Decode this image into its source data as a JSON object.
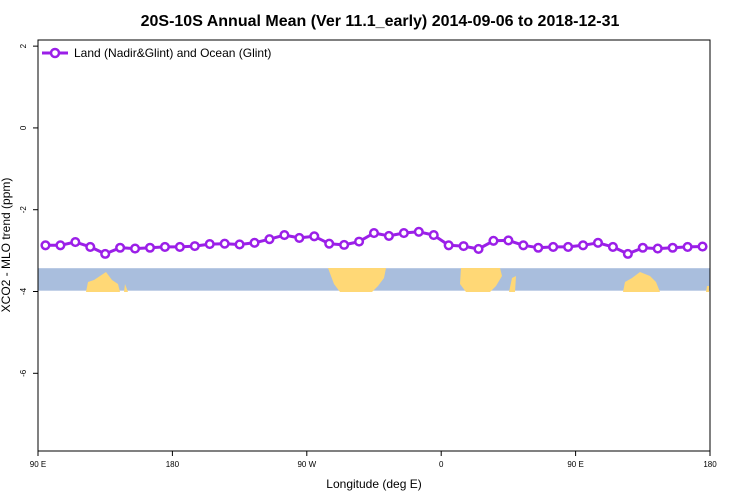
{
  "chart_data": {
    "type": "line",
    "title": "20S-10S Annual Mean (Ver 11.1_early)   2014-09-06 to 2018-12-31",
    "xlabel": "Longitude (deg E)",
    "ylabel": "XCO2 - MLO trend (ppm)",
    "x_ticks": [
      {
        "value": 90,
        "label": "90 E"
      },
      {
        "value": 180,
        "label": "180"
      },
      {
        "value": 270,
        "label": "90 W"
      },
      {
        "value": 360,
        "label": "0"
      },
      {
        "value": 450,
        "label": "90 E"
      },
      {
        "value": 540,
        "label": "180"
      }
    ],
    "y_ticks": [
      {
        "value": 2,
        "label": "2"
      },
      {
        "value": 0,
        "label": "0"
      },
      {
        "value": -2,
        "label": "-2"
      },
      {
        "value": -4,
        "label": "-4"
      },
      {
        "value": -6,
        "label": "-6"
      }
    ],
    "xlim": [
      90,
      540
    ],
    "ylim": [
      -7.9,
      2.15
    ],
    "grid": false,
    "legend_position": "top-left",
    "map_strip_y": [
      -3.43,
      -3.98
    ],
    "colors": {
      "series": "#9b1fe8",
      "ocean": "#a9bedd",
      "land": "#ffd876"
    },
    "series": [
      {
        "name": "Land (Nadir&Glint) and Ocean (Glint)",
        "x": [
          95,
          105,
          115,
          125,
          135,
          145,
          155,
          165,
          175,
          185,
          195,
          205,
          215,
          225,
          235,
          245,
          255,
          265,
          275,
          285,
          295,
          305,
          315,
          325,
          335,
          345,
          355,
          365,
          375,
          385,
          395,
          405,
          415,
          425,
          435,
          445,
          455,
          465,
          475,
          485,
          495,
          505,
          515,
          525,
          535
        ],
        "values": [
          -2.87,
          -2.87,
          -2.79,
          -2.91,
          -3.08,
          -2.93,
          -2.95,
          -2.93,
          -2.91,
          -2.91,
          -2.89,
          -2.84,
          -2.83,
          -2.85,
          -2.81,
          -2.72,
          -2.62,
          -2.69,
          -2.65,
          -2.83,
          -2.86,
          -2.78,
          -2.57,
          -2.64,
          -2.57,
          -2.54,
          -2.62,
          -2.87,
          -2.89,
          -2.96,
          -2.76,
          -2.75,
          -2.87,
          -2.93,
          -2.91,
          -2.91,
          -2.87,
          -2.81,
          -2.91,
          -3.08,
          -2.93,
          -2.95,
          -2.93,
          -2.91,
          -2.9
        ]
      }
    ]
  }
}
